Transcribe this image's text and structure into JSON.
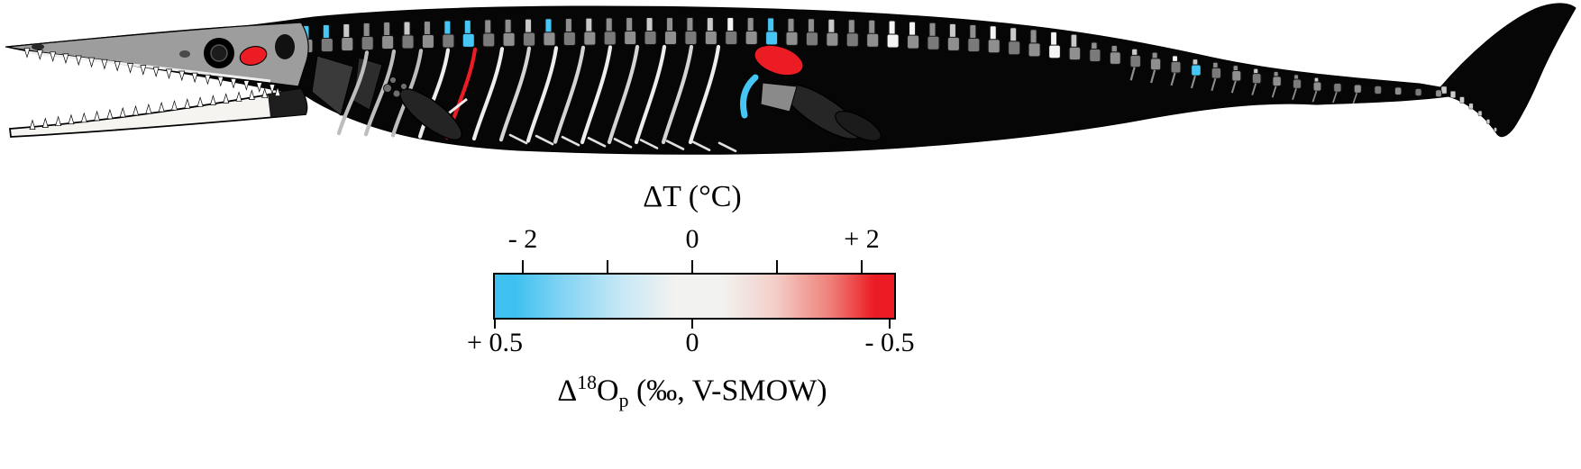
{
  "figure": {
    "subject": "Marine crocodylomorph (thalattosuchian) skeletal reconstruction with bones colour-coded by temperature / oxygen-isotope offset"
  },
  "legend": {
    "temperature_axis": {
      "title": "ΔT (°C)",
      "tick_labels": [
        "- 2",
        "0",
        "+ 2"
      ],
      "range_c": [
        -2,
        2
      ]
    },
    "isotope_axis": {
      "title_prefix": "Δ",
      "title_sup": "18",
      "title_base": "O",
      "title_sub": "p",
      "title_suffix": " (‰, V-SMOW)",
      "tick_labels": [
        "+ 0.5",
        "0",
        "- 0.5"
      ],
      "range_permil": [
        0.5,
        -0.5
      ]
    },
    "colorbar": {
      "cold_color": "#3EC1F0",
      "neutral_color": "#F2F2F0",
      "hot_color": "#EC1C24"
    }
  },
  "skeleton": {
    "bone_default": "#8F8F8F",
    "bone_alt": "#7A7A7A",
    "bone_light": "#C9C9C9",
    "bone_white": "#F5F5F5",
    "cold_color": "#45C6F4",
    "hot_color": "#EC1C24",
    "vertebra_count": 58,
    "blue_spine_indices": [
      1,
      2,
      8,
      9,
      13,
      24
    ],
    "blue_centrum_indices": [
      9,
      24,
      45
    ],
    "white_spine_indices": [
      22,
      30,
      31,
      35,
      38,
      44
    ],
    "white_centrum_indices": [
      30,
      38
    ],
    "rib_count": 14,
    "red_rib_index": 4,
    "gastralia_count": 9,
    "upper_teeth_count": 20,
    "lower_teeth_count": 20
  }
}
